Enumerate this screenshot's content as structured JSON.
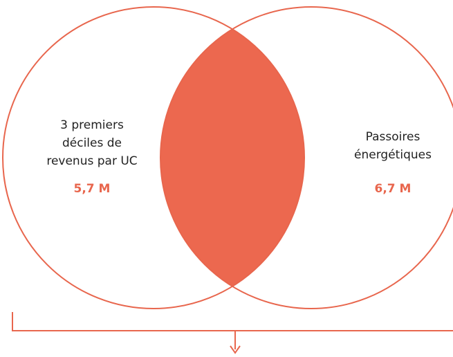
{
  "left": {
    "label": [
      "3 premiers",
      "déciles de",
      "revenus par UC"
    ],
    "value": "5,7 M"
  },
  "right": {
    "label": [
      "Passoires",
      "énergétiques"
    ],
    "value": "6,7 M"
  }
}
